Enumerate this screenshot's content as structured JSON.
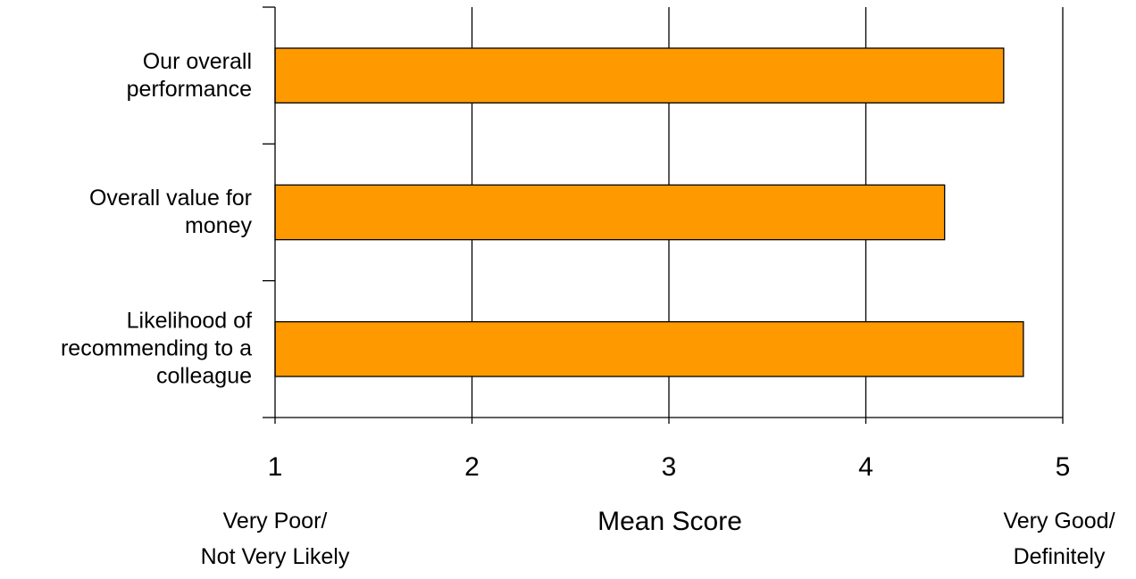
{
  "chart_data": {
    "type": "bar",
    "orientation": "horizontal",
    "categories": [
      [
        "Our overall",
        "performance"
      ],
      [
        "Overall value for",
        "money"
      ],
      [
        "Likelihood of",
        "recommending to a",
        "colleague"
      ]
    ],
    "values": [
      4.7,
      4.4,
      4.8
    ],
    "xlabel": "Mean Score",
    "xlim": [
      1,
      5
    ],
    "xticks": [
      "1",
      "2",
      "3",
      "4",
      "5"
    ],
    "scale_anchors": {
      "low": [
        "Very Poor/",
        "Not Very Likely"
      ],
      "high": [
        "Very Good/",
        "Definitely"
      ]
    },
    "vertical_grid": true,
    "bar_color": "#FF9900",
    "bar_border_color": "#000000"
  }
}
